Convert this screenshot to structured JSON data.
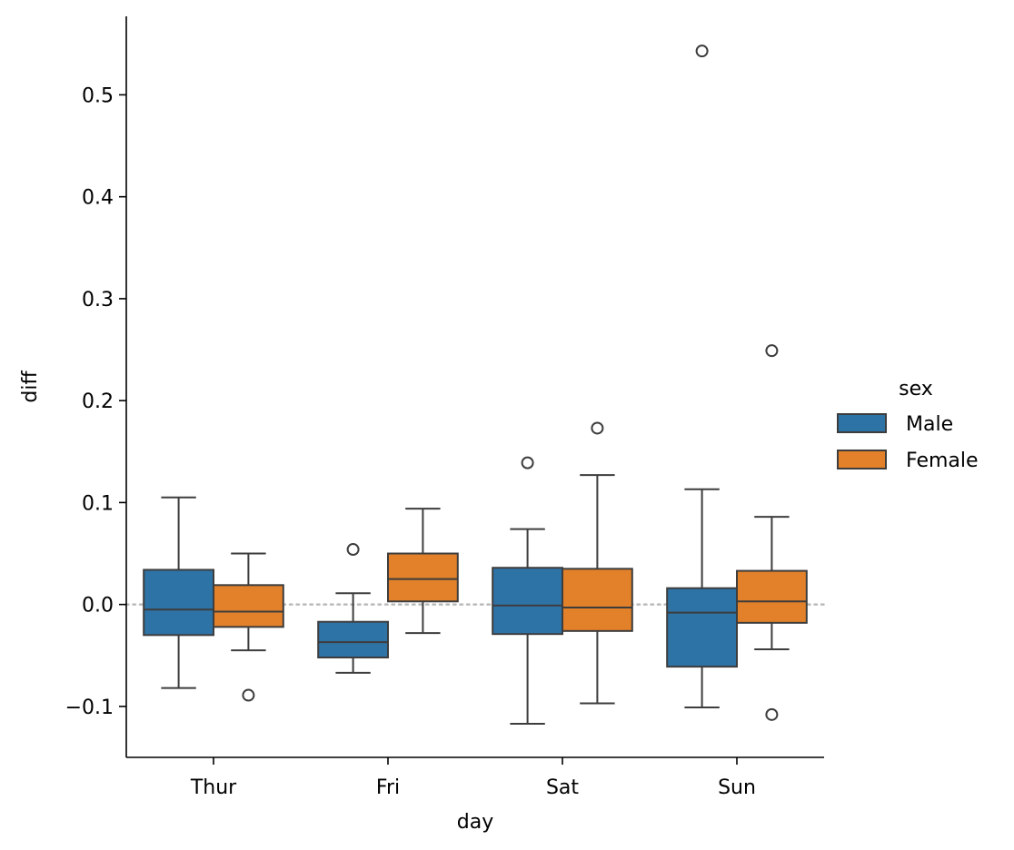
{
  "chart_data": {
    "type": "box",
    "xlabel": "day",
    "ylabel": "diff",
    "categories": [
      "Thur",
      "Fri",
      "Sat",
      "Sun"
    ],
    "ylim": [
      -0.15,
      0.577
    ],
    "yticks": [
      -0.1,
      0.0,
      0.1,
      0.2,
      0.3,
      0.4,
      0.5
    ],
    "ytick_labels": [
      "−0.1",
      "0.0",
      "0.1",
      "0.2",
      "0.3",
      "0.4",
      "0.5"
    ],
    "reference_line": {
      "y": 0.0,
      "style": "dotted",
      "color": "#bbbbbb"
    },
    "grid": false,
    "legend": {
      "title": "sex",
      "placement": "center-right-outside"
    },
    "series": [
      {
        "name": "Male",
        "color": "#2e73a6",
        "boxes": [
          {
            "category": "Thur",
            "whisker_low": -0.082,
            "q1": -0.03,
            "median": -0.005,
            "q3": 0.034,
            "whisker_high": 0.105,
            "outliers": []
          },
          {
            "category": "Fri",
            "whisker_low": -0.067,
            "q1": -0.052,
            "median": -0.037,
            "q3": -0.017,
            "whisker_high": 0.011,
            "outliers": [
              0.054
            ]
          },
          {
            "category": "Sat",
            "whisker_low": -0.117,
            "q1": -0.029,
            "median": -0.001,
            "q3": 0.036,
            "whisker_high": 0.074,
            "outliers": [
              0.139
            ]
          },
          {
            "category": "Sun",
            "whisker_low": -0.101,
            "q1": -0.061,
            "median": -0.008,
            "q3": 0.016,
            "whisker_high": 0.113,
            "outliers": [
              0.543
            ]
          }
        ]
      },
      {
        "name": "Female",
        "color": "#e2812a",
        "boxes": [
          {
            "category": "Thur",
            "whisker_low": -0.045,
            "q1": -0.022,
            "median": -0.007,
            "q3": 0.019,
            "whisker_high": 0.05,
            "outliers": [
              -0.089
            ]
          },
          {
            "category": "Fri",
            "whisker_low": -0.028,
            "q1": 0.003,
            "median": 0.025,
            "q3": 0.05,
            "whisker_high": 0.094,
            "outliers": []
          },
          {
            "category": "Sat",
            "whisker_low": -0.097,
            "q1": -0.026,
            "median": -0.003,
            "q3": 0.035,
            "whisker_high": 0.127,
            "outliers": [
              0.173
            ]
          },
          {
            "category": "Sun",
            "whisker_low": -0.044,
            "q1": -0.018,
            "median": 0.003,
            "q3": 0.033,
            "whisker_high": 0.086,
            "outliers": [
              0.249,
              -0.108
            ]
          }
        ]
      }
    ]
  }
}
